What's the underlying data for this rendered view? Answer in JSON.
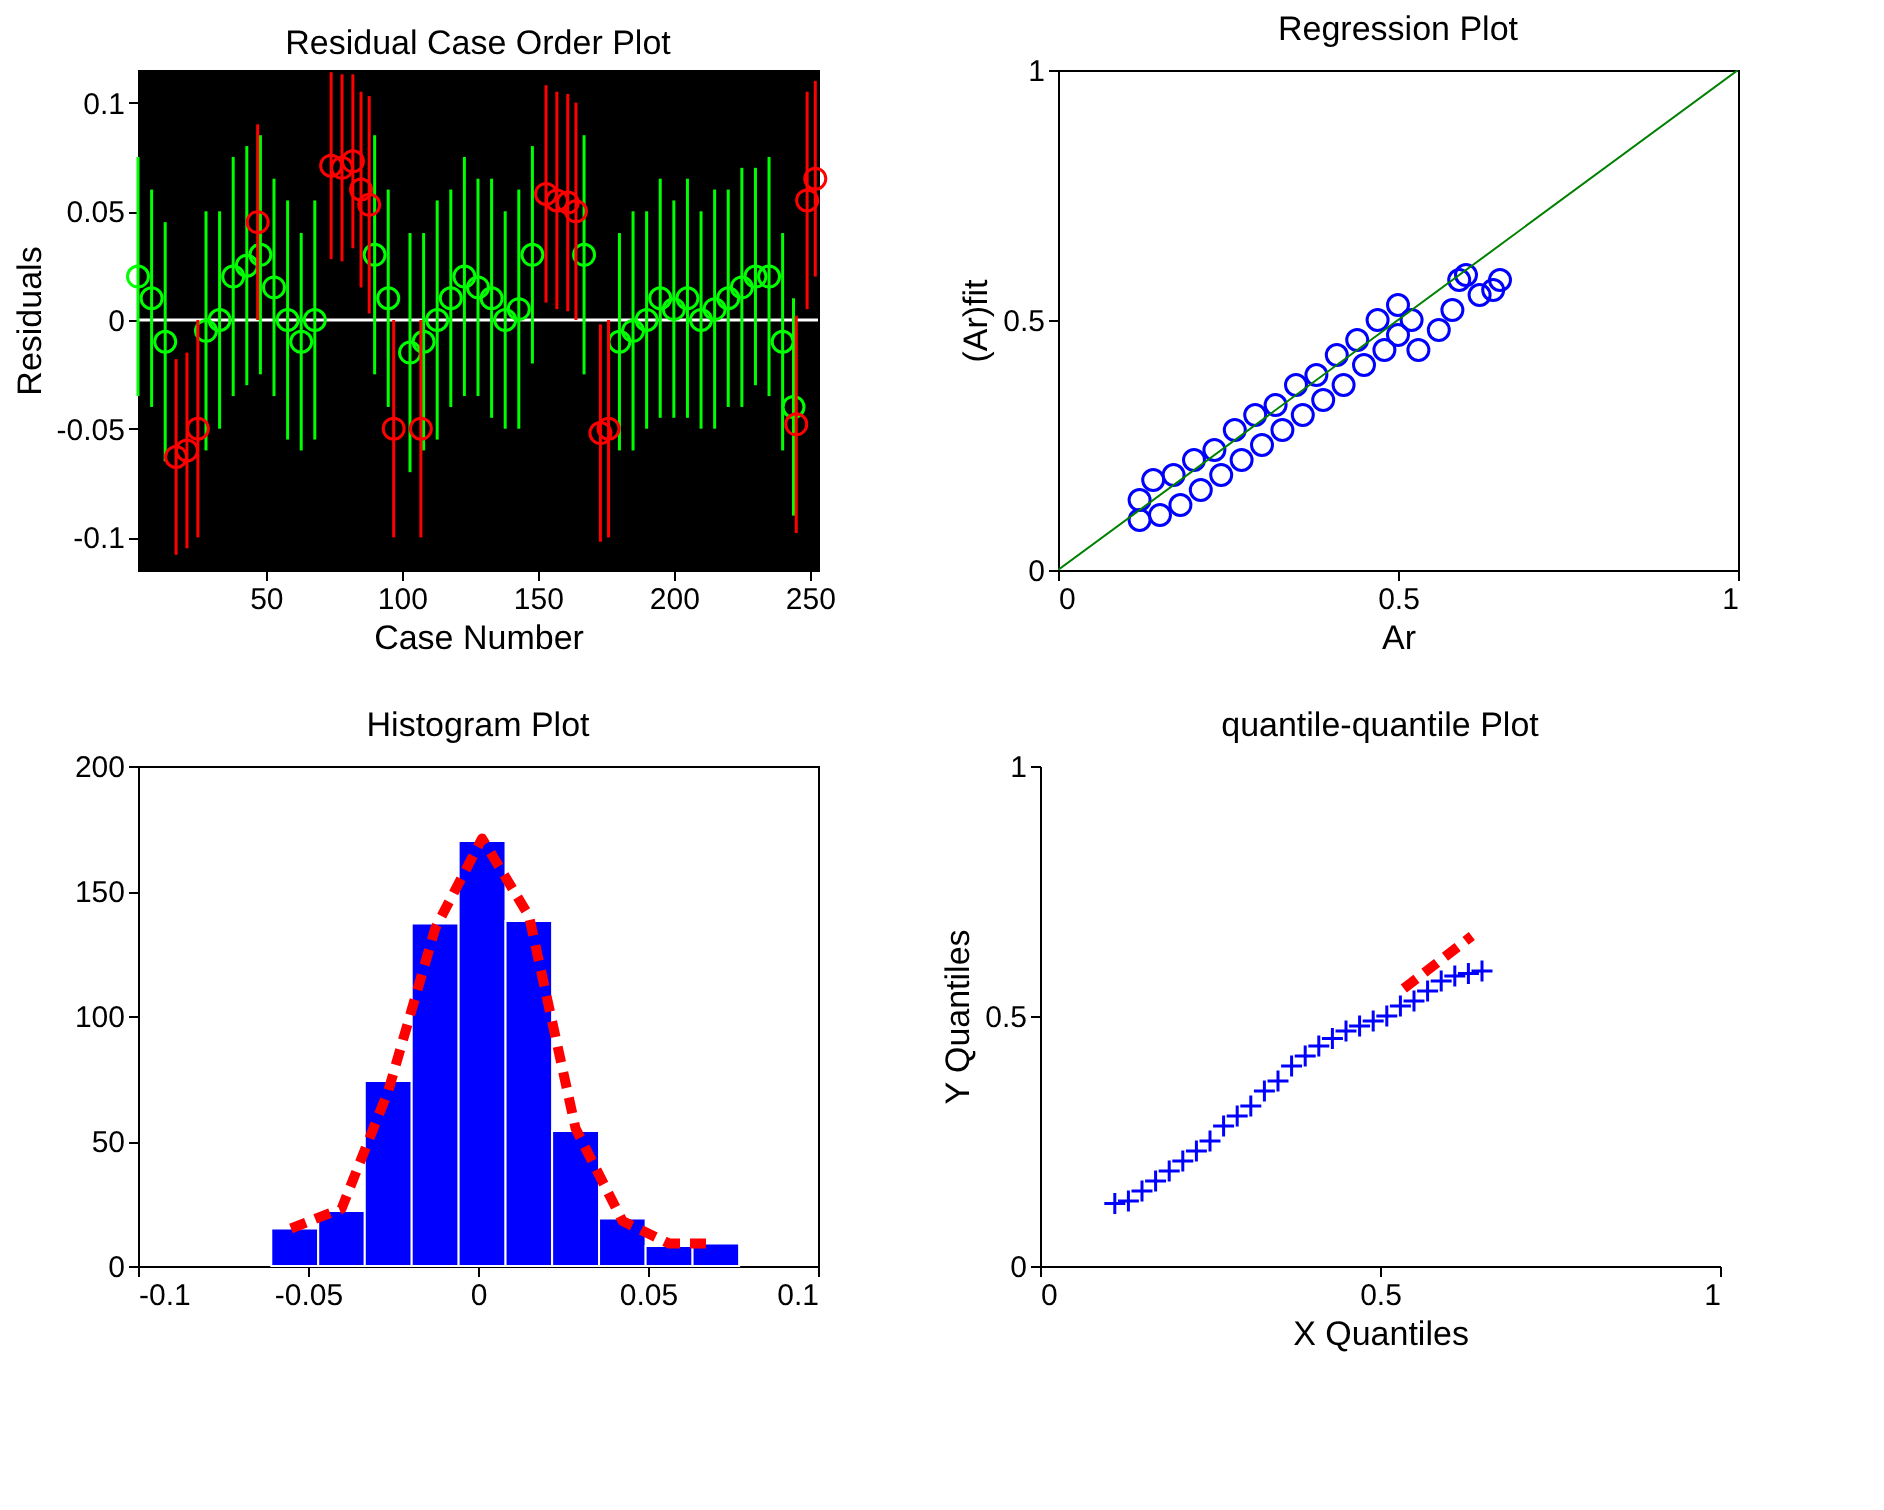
{
  "chart_data": [
    {
      "type": "scatter",
      "title": "Residual Case Order Plot",
      "xlabel": "Case Number",
      "ylabel": "Residuals",
      "xlim": [
        3,
        253
      ],
      "xticks": [
        50,
        100,
        150,
        200,
        250
      ],
      "ylim": [
        -0.115,
        0.115
      ],
      "yticks": [
        -0.1,
        -0.05,
        0,
        0.05,
        0.1
      ],
      "grid": false,
      "ref_lines": [
        {
          "axis": "y",
          "value": 0,
          "color": "#ffffff"
        }
      ],
      "series": [
        {
          "type": "scatter",
          "marker": "circle",
          "color": "#00ff00",
          "x": [
            3,
            8,
            13,
            28,
            33,
            38,
            43,
            48,
            53,
            58,
            63,
            68,
            90,
            95,
            103,
            108,
            113,
            118,
            123,
            128,
            133,
            138,
            143,
            148,
            167,
            180,
            185,
            190,
            195,
            200,
            205,
            210,
            215,
            220,
            225,
            230,
            235,
            240,
            244
          ],
          "values": [
            0.02,
            0.01,
            -0.01,
            -0.005,
            0.0,
            0.02,
            0.025,
            0.03,
            0.015,
            0.0,
            -0.01,
            0.0,
            0.03,
            0.01,
            -0.015,
            -0.01,
            0.0,
            0.01,
            0.02,
            0.015,
            0.01,
            0.0,
            0.005,
            0.03,
            0.03,
            -0.01,
            -0.005,
            0.0,
            0.01,
            0.005,
            0.01,
            0.0,
            0.005,
            0.01,
            0.015,
            0.02,
            0.02,
            -0.01,
            -0.04
          ],
          "errors": [
            0.055,
            0.05,
            0.055,
            0.055,
            0.05,
            0.055,
            0.055,
            0.055,
            0.05,
            0.055,
            0.05,
            0.055,
            0.055,
            0.05,
            0.055,
            0.05,
            0.055,
            0.05,
            0.055,
            0.05,
            0.055,
            0.05,
            0.055,
            0.05,
            0.055,
            0.05,
            0.055,
            0.05,
            0.055,
            0.05,
            0.055,
            0.05,
            0.055,
            0.05,
            0.055,
            0.05,
            0.055,
            0.05,
            0.05
          ]
        },
        {
          "type": "scatter",
          "marker": "circle",
          "color": "#ff0000",
          "x": [
            17,
            21,
            25,
            47,
            74,
            78,
            82,
            85,
            88,
            97,
            107,
            153,
            157,
            161,
            164,
            173,
            176,
            245,
            249,
            252
          ],
          "values": [
            -0.063,
            -0.06,
            -0.05,
            0.045,
            0.071,
            0.07,
            0.073,
            0.06,
            0.053,
            -0.05,
            -0.05,
            0.058,
            0.055,
            0.054,
            0.05,
            -0.052,
            -0.05,
            -0.048,
            0.055,
            0.065
          ],
          "errors": [
            0.045,
            0.045,
            0.05,
            0.045,
            0.043,
            0.043,
            0.04,
            0.045,
            0.05,
            0.05,
            0.05,
            0.05,
            0.05,
            0.05,
            0.05,
            0.05,
            0.05,
            0.05,
            0.05,
            0.045
          ]
        }
      ]
    },
    {
      "type": "scatter",
      "title": "Regression Plot",
      "xlabel": "Ar",
      "ylabel": "(Ar)fit",
      "xlim": [
        0,
        1
      ],
      "xticks": [
        0,
        0.5,
        1
      ],
      "ylim": [
        0,
        1
      ],
      "yticks": [
        0,
        0.5,
        1
      ],
      "grid": false,
      "series": [
        {
          "type": "scatter",
          "marker": "circle",
          "color": "#0000ff",
          "x": [
            0.12,
            0.12,
            0.14,
            0.15,
            0.17,
            0.18,
            0.2,
            0.21,
            0.23,
            0.24,
            0.26,
            0.27,
            0.29,
            0.3,
            0.32,
            0.33,
            0.35,
            0.36,
            0.38,
            0.39,
            0.41,
            0.42,
            0.44,
            0.45,
            0.47,
            0.48,
            0.5,
            0.5,
            0.52,
            0.53,
            0.56,
            0.58,
            0.59,
            0.6,
            0.62,
            0.64,
            0.65
          ],
          "values": [
            0.14,
            0.1,
            0.18,
            0.11,
            0.19,
            0.13,
            0.22,
            0.16,
            0.24,
            0.19,
            0.28,
            0.22,
            0.31,
            0.25,
            0.33,
            0.28,
            0.37,
            0.31,
            0.39,
            0.34,
            0.43,
            0.37,
            0.46,
            0.41,
            0.5,
            0.44,
            0.53,
            0.47,
            0.5,
            0.44,
            0.48,
            0.52,
            0.58,
            0.59,
            0.55,
            0.56,
            0.58
          ]
        },
        {
          "type": "line",
          "color": "#008000",
          "x": [
            0,
            1
          ],
          "values": [
            0,
            1
          ]
        }
      ]
    },
    {
      "type": "histogram",
      "title": "Histogram Plot",
      "xlim": [
        -0.1,
        0.1
      ],
      "xticks": [
        -0.1,
        -0.05,
        0,
        0.05,
        0.1
      ],
      "ylim": [
        0,
        200
      ],
      "yticks": [
        0,
        50,
        100,
        150,
        200
      ],
      "grid": false,
      "color": "#0000ff",
      "bins": [
        -0.0608,
        -0.047,
        -0.0333,
        -0.0195,
        -0.0057,
        0.0081,
        0.0218,
        0.0356,
        0.0493,
        0.0631,
        0.0768
      ],
      "values": [
        15,
        22,
        74,
        137,
        170,
        138,
        54,
        19,
        8,
        9
      ],
      "series": [
        {
          "type": "line",
          "line_style": "dashed",
          "color": "#ff0000",
          "x": [
            -0.055,
            -0.0401,
            -0.0264,
            -0.0126,
            0.0012,
            0.015,
            0.0287,
            0.0425,
            0.0562,
            0.07
          ],
          "values": [
            15,
            23,
            70,
            135,
            171,
            140,
            55,
            18,
            9,
            9
          ]
        }
      ]
    },
    {
      "type": "scatter",
      "title": "quantile-quantile Plot",
      "xlabel": "X Quantiles",
      "ylabel": "Y Quantiles",
      "xlim": [
        0,
        1
      ],
      "xticks": [
        0,
        0.5,
        1
      ],
      "ylim": [
        0,
        1
      ],
      "yticks": [
        0,
        0.5,
        1
      ],
      "grid": false,
      "series": [
        {
          "type": "line",
          "line_style": "dashed",
          "color": "#ff0000",
          "x": [
            0.535,
            0.635
          ],
          "values": [
            0.555,
            0.66
          ]
        },
        {
          "type": "scatter",
          "marker": "cross",
          "color": "#0000ff",
          "x": [
            0.11,
            0.13,
            0.15,
            0.17,
            0.19,
            0.21,
            0.23,
            0.25,
            0.27,
            0.29,
            0.31,
            0.33,
            0.35,
            0.37,
            0.39,
            0.41,
            0.43,
            0.45,
            0.47,
            0.49,
            0.51,
            0.53,
            0.55,
            0.57,
            0.59,
            0.61,
            0.63,
            0.65
          ],
          "values": [
            0.125,
            0.13,
            0.15,
            0.17,
            0.19,
            0.21,
            0.23,
            0.25,
            0.28,
            0.3,
            0.32,
            0.35,
            0.37,
            0.4,
            0.42,
            0.44,
            0.455,
            0.47,
            0.48,
            0.49,
            0.5,
            0.52,
            0.53,
            0.55,
            0.57,
            0.58,
            0.585,
            0.59
          ]
        }
      ]
    }
  ]
}
